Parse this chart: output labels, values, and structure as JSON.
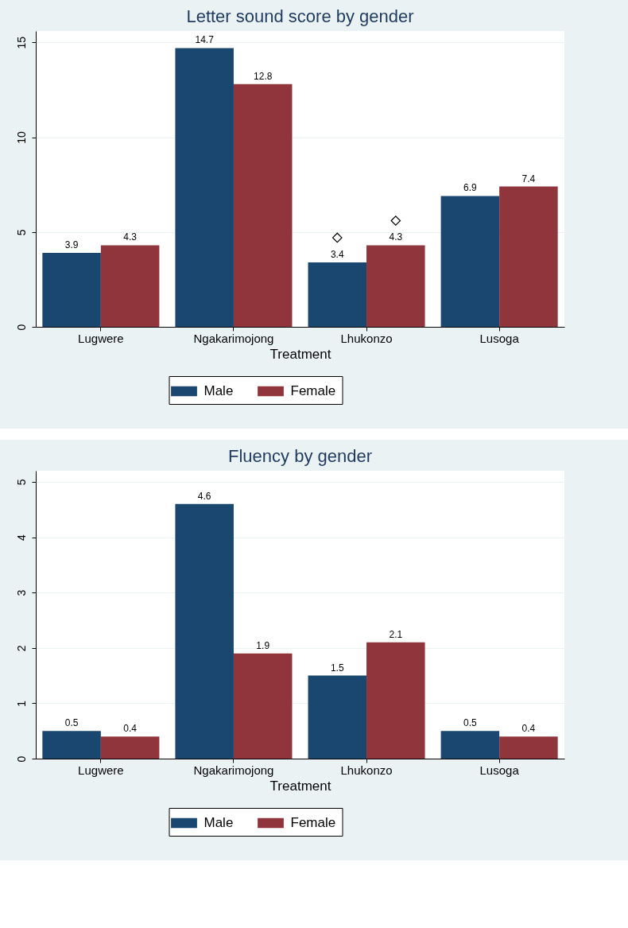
{
  "chart_data": [
    {
      "type": "bar",
      "title": "Letter sound score by gender",
      "xlabel": "Treatment",
      "categories": [
        "Lugwere",
        "Ngakarimojong",
        "Lhukonzo",
        "Lusoga"
      ],
      "series": [
        {
          "name": "Male",
          "color": "#1a476f",
          "values": [
            3.9,
            14.7,
            3.4,
            6.9
          ],
          "value_labels": [
            "3.9",
            "14.7",
            "3.4",
            "6.9"
          ]
        },
        {
          "name": "Female",
          "color": "#90353b",
          "values": [
            4.3,
            12.8,
            4.3,
            7.4
          ],
          "value_labels": [
            "4.3",
            "12.8",
            "4.3",
            "7.4"
          ]
        },
        {
          "type": "scatter",
          "marker": "diamond",
          "color": "#000000",
          "x": [
            "Lhukonzo"
          ],
          "values": [
            4.7
          ]
        },
        {
          "type": "scatter",
          "marker": "diamond",
          "color": "#000000",
          "x": [
            "Lhukonzo"
          ],
          "values": [
            5.6
          ]
        }
      ],
      "ylim": [
        0,
        15.6
      ],
      "yticks": [
        0,
        5,
        10,
        15
      ],
      "grid": "y",
      "legend": "bottom"
    },
    {
      "type": "bar",
      "title": "Fluency by gender",
      "xlabel": "Treatment",
      "categories": [
        "Lugwere",
        "Ngakarimojong",
        "Lhukonzo",
        "Lusoga"
      ],
      "series": [
        {
          "name": "Male",
          "color": "#1a476f",
          "values": [
            0.5,
            4.6,
            1.5,
            0.5
          ]
        },
        {
          "name": "Female",
          "color": "#90353b",
          "values": [
            0.4,
            1.9,
            2.1,
            0.4
          ]
        }
      ],
      "ylim": [
        0,
        5.2
      ],
      "yticks": [
        0,
        1,
        2,
        3,
        4,
        5
      ],
      "grid": "y",
      "legend": "bottom",
      "data_labels": true
    }
  ]
}
